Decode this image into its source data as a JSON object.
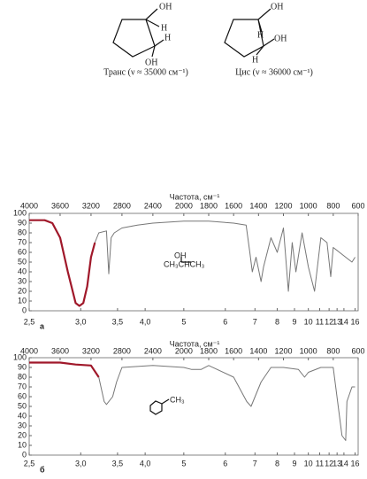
{
  "structures": [
    {
      "atoms": [
        "OH",
        "H",
        "H",
        "OH"
      ],
      "caption": "Транс (ν ≈ 35000 см⁻¹)"
    },
    {
      "atoms": [
        "OH",
        "H",
        "OH",
        "H"
      ],
      "caption": "Цис (ν ≈ 36000 см⁻¹)"
    }
  ],
  "chart_data": [
    {
      "type": "line",
      "title": "Частота, см⁻¹",
      "panel_label": "а",
      "annotations": [
        "OH",
        "CH₃CHCH₃"
      ],
      "x": [
        4000,
        3800,
        3700,
        3600,
        3500,
        3400,
        3350,
        3300,
        3250,
        3200,
        3150,
        3100,
        3000,
        2970,
        2940,
        2900,
        2800,
        2600,
        2400,
        2000,
        1800,
        1600,
        1500,
        1470,
        1450,
        1420,
        1380,
        1360,
        1300,
        1250,
        1200,
        1160,
        1130,
        1100,
        1050,
        1000,
        950,
        900,
        850,
        820,
        800,
        700,
        650,
        625
      ],
      "series": [
        {
          "color": "#a0182a",
          "values": [
            93,
            93,
            90,
            75,
            40,
            8,
            5,
            8,
            25,
            55,
            70,
            null,
            null,
            null,
            null,
            null,
            null,
            null,
            null,
            null,
            null,
            null,
            null,
            null,
            null,
            null,
            null,
            null,
            null,
            null,
            null,
            null,
            null,
            null,
            null,
            null,
            null,
            null,
            null,
            null,
            null,
            null,
            null,
            null
          ]
        },
        {
          "color": "#777777",
          "values": [
            null,
            null,
            null,
            null,
            null,
            null,
            null,
            null,
            null,
            null,
            70,
            80,
            82,
            38,
            75,
            80,
            85,
            88,
            90,
            92,
            92,
            90,
            88,
            60,
            40,
            55,
            30,
            45,
            75,
            60,
            85,
            20,
            70,
            40,
            80,
            45,
            20,
            75,
            70,
            35,
            65,
            55,
            50,
            55
          ]
        }
      ],
      "xlim": [
        4000,
        600
      ],
      "ylim": [
        0,
        100
      ],
      "xticks": [
        4000,
        3600,
        3200,
        2800,
        2400,
        2000,
        1800,
        1600,
        1400,
        1200,
        1000,
        800,
        600
      ],
      "x2ticks": [
        {
          "value": 2.5,
          "label": "2,5"
        },
        {
          "value": 3.0,
          "label": "3,0"
        },
        {
          "value": 3.5,
          "label": "3,5"
        },
        {
          "value": 4.0,
          "label": "4,0"
        },
        5,
        6,
        7,
        8,
        9,
        10,
        11,
        12,
        13,
        14,
        16
      ],
      "yticks": [
        0,
        10,
        20,
        30,
        40,
        50,
        60,
        70,
        80,
        90,
        100
      ]
    },
    {
      "type": "line",
      "title": "Частота, см⁻¹",
      "panel_label": "б",
      "annotations": [
        "CH₃"
      ],
      "x": [
        4000,
        3600,
        3400,
        3200,
        3100,
        3030,
        3000,
        2920,
        2870,
        2800,
        2400,
        2000,
        1940,
        1860,
        1800,
        1600,
        1495,
        1460,
        1380,
        1300,
        1200,
        1080,
        1030,
        1000,
        900,
        800,
        730,
        700,
        690,
        650,
        625
      ],
      "series": [
        {
          "color": "#a0182a",
          "values": [
            95,
            95,
            93,
            92,
            80,
            null,
            null,
            null,
            null,
            null,
            null,
            null,
            null,
            null,
            null,
            null,
            null,
            null,
            null,
            null,
            null,
            null,
            null,
            null,
            null,
            null,
            null,
            null,
            null,
            null,
            null
          ]
        },
        {
          "color": "#777777",
          "values": [
            null,
            null,
            null,
            null,
            80,
            55,
            52,
            60,
            75,
            90,
            92,
            90,
            88,
            88,
            92,
            80,
            55,
            50,
            75,
            90,
            90,
            88,
            80,
            85,
            90,
            90,
            20,
            15,
            55,
            70,
            70
          ]
        }
      ],
      "xlim": [
        4000,
        600
      ],
      "ylim": [
        0,
        100
      ],
      "xticks": [
        4000,
        3600,
        3200,
        2800,
        2400,
        2000,
        1800,
        1600,
        1400,
        1200,
        1000,
        800,
        600
      ],
      "x2ticks": [
        {
          "value": 2.5,
          "label": "2,5"
        },
        {
          "value": 3.0,
          "label": "3,0"
        },
        {
          "value": 3.5,
          "label": "3,5"
        },
        {
          "value": 4.0,
          "label": "4,0"
        },
        5,
        6,
        7,
        8,
        9,
        10,
        11,
        12,
        13,
        14,
        16
      ],
      "yticks": [
        0,
        10,
        20,
        30,
        40,
        50,
        60,
        70,
        80,
        90,
        100
      ]
    }
  ]
}
